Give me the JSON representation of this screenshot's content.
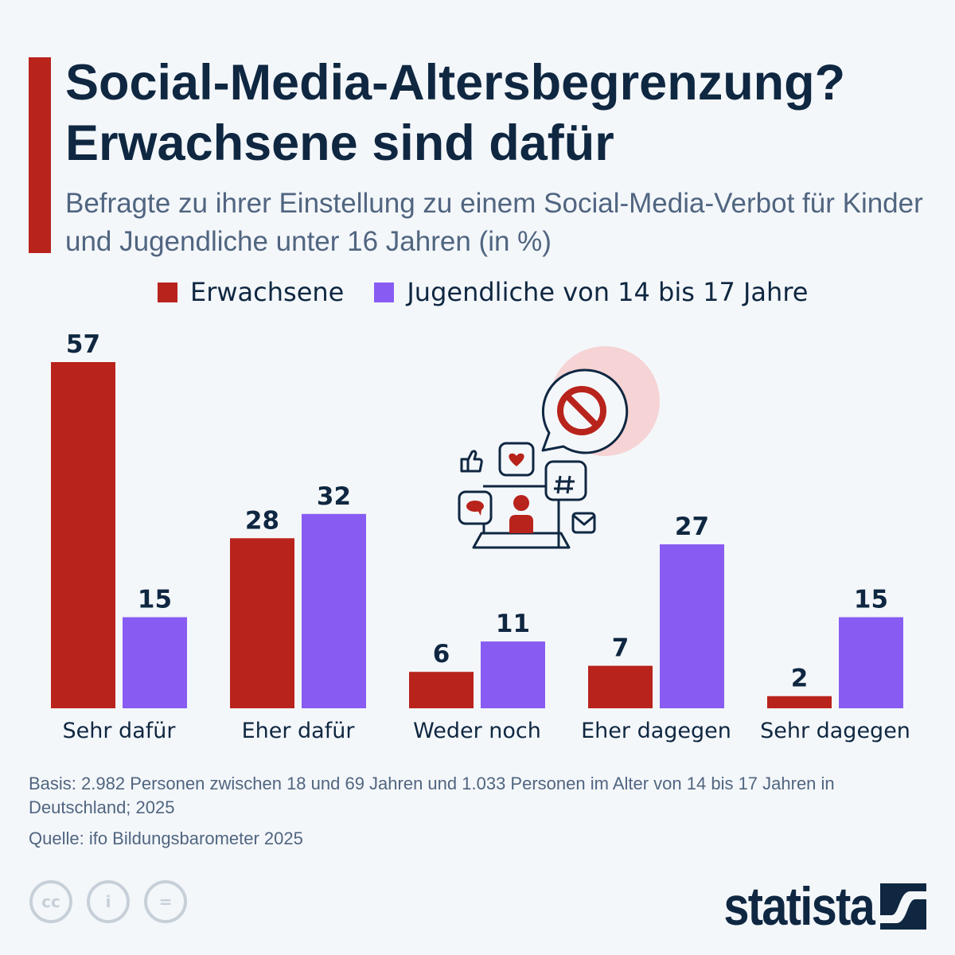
{
  "title": "Social-Media-Altersbegrenzung? Erwachsene sind dafür",
  "title_lines": [
    "Social-Media-Altersbegrenzung?",
    "Erwachsene sind dafür"
  ],
  "subtitle": "Befragte zu ihrer Einstellung zu einem Social-Media-Verbot für Kinder und Jugendliche unter 16 Jahren (in %)",
  "colors": {
    "accent": "#b8231c",
    "erwachsene": "#b8231c",
    "jugendliche": "#885cf2",
    "text": "#0f2741"
  },
  "chart_data": {
    "type": "bar",
    "categories": [
      "Sehr dafür",
      "Eher dafür",
      "Weder noch",
      "Eher dagegen",
      "Sehr dagegen"
    ],
    "series": [
      {
        "name": "Erwachsene",
        "values": [
          57,
          28,
          6,
          7,
          2
        ]
      },
      {
        "name": "Jugendliche von 14 bis 17 Jahre",
        "values": [
          15,
          32,
          11,
          27,
          15
        ]
      }
    ],
    "ylim": [
      0,
      57
    ],
    "grid": false,
    "legend": "top",
    "data_labels": true
  },
  "illustration_icons": [
    "prohibited-icon",
    "speech-bubble-icon",
    "thumbs-up-icon",
    "heart-icon",
    "hashtag-icon",
    "comment-icon",
    "mail-icon",
    "laptop-icon",
    "person-icon"
  ],
  "footer": {
    "basis": "Basis: 2.982 Personen zwischen 18 und 69 Jahren und 1.033 Personen im Alter von 14 bis 17 Jahren in Deutschland; 2025",
    "source": "Quelle: ifo Bildungsbarometer 2025",
    "license_icons": [
      "cc-icon",
      "attribution-icon",
      "no-derivatives-icon"
    ],
    "logo": "statista"
  }
}
